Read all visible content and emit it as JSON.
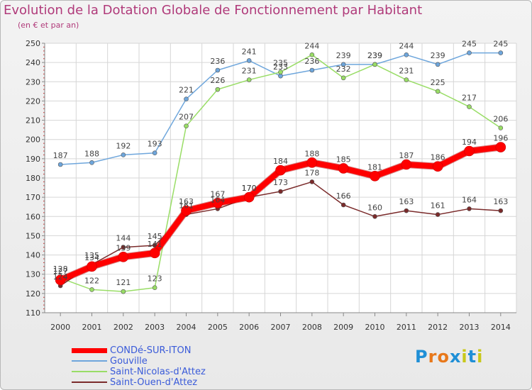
{
  "chart_data": {
    "type": "line",
    "title": "Evolution de la Dotation Globale de Fonctionnement par Habitant",
    "subtitle": "(en € et par an)",
    "xlabel": "",
    "ylabel": "",
    "ylim": [
      110,
      250
    ],
    "yticks": [
      110,
      120,
      130,
      140,
      150,
      160,
      170,
      180,
      190,
      200,
      210,
      220,
      230,
      240,
      250
    ],
    "categories": [
      "2000",
      "2001",
      "2002",
      "2003",
      "2004",
      "2005",
      "2006",
      "2007",
      "2008",
      "2009",
      "2010",
      "2011",
      "2012",
      "2013",
      "2014"
    ],
    "grid": true,
    "series": [
      {
        "name": "CONDé-SUR-ITON",
        "color": "#ff0000",
        "values": [
          127,
          134,
          139,
          141,
          163,
          167,
          170,
          184,
          188,
          185,
          181,
          187,
          186,
          194,
          196
        ]
      },
      {
        "name": "Gouville",
        "color": "#6ea6dc",
        "values": [
          187,
          188,
          192,
          193,
          221,
          236,
          241,
          233,
          236,
          239,
          239,
          244,
          239,
          245,
          245
        ]
      },
      {
        "name": "Saint-Nicolas-d'Attez",
        "color": "#99dd66",
        "values": [
          128,
          122,
          121,
          123,
          207,
          226,
          231,
          235,
          244,
          232,
          239,
          231,
          225,
          217,
          206
        ]
      },
      {
        "name": "Saint-Ouen-d'Attez",
        "color": "#7a2a2a",
        "values": [
          124,
          135,
          144,
          145,
          161,
          164,
          170,
          173,
          178,
          166,
          160,
          163,
          161,
          164,
          163
        ]
      }
    ]
  },
  "brand": {
    "text": "Proxiti",
    "letter_colors": [
      "#1f8fd6",
      "#e8781a",
      "#e8781a",
      "#1f8fd6",
      "#c8c81a",
      "#1f8fd6",
      "#c8c81a"
    ]
  }
}
